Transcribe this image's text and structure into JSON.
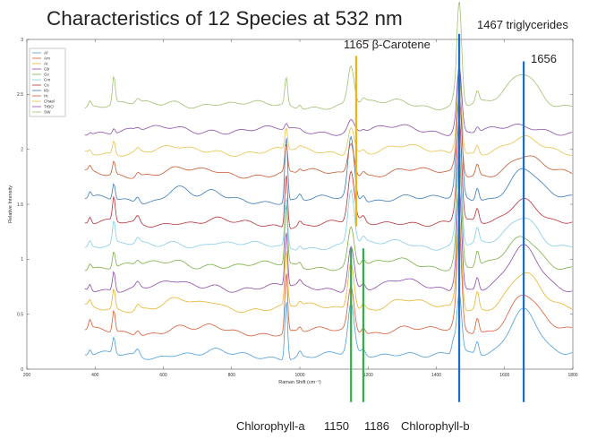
{
  "slide": {
    "title": "Characteristics of 12 Species at 532 nm",
    "annotations": {
      "carotene": "1165 β-Carotene",
      "triglycerides": "1467 triglycerides",
      "peak_1656": "1656",
      "chlorophyll_a_label": "Chlorophyll-a",
      "chlorophyll_a_value": "1150",
      "chlorophyll_b_value": "1186",
      "chlorophyll_b_label": "Chlorophyll-b"
    }
  },
  "chart_data": {
    "type": "line",
    "title": "",
    "xlabel": "Raman Shift (cm⁻¹)",
    "ylabel": "Relative Intensity",
    "xlim": [
      200,
      1800
    ],
    "ylim": [
      0,
      3
    ],
    "x_ticks": [
      200,
      400,
      600,
      800,
      1000,
      1200,
      1400,
      1600,
      1800
    ],
    "y_ticks": [
      0,
      0.5,
      1,
      1.5,
      2,
      2.5,
      3
    ],
    "grid": false,
    "legend_position": "top-left",
    "x_range": [
      370,
      1800
    ],
    "peaks_cm1": [
      385,
      455,
      525,
      640,
      745,
      960,
      1000,
      1150,
      1186,
      1300,
      1450,
      1467,
      1520,
      1656
    ],
    "series": [
      {
        "name": "Af",
        "color": "#4c9ed8",
        "offset": 0.0,
        "peak_heights": [
          0.05,
          0.15,
          0.06,
          0.04,
          0.03,
          0.55,
          0.05,
          0.45,
          0.05,
          0.05,
          0.12,
          0.55,
          0.12,
          0.45
        ]
      },
      {
        "name": "Am",
        "color": "#d95b34",
        "offset": 0.22,
        "peak_heights": [
          0.08,
          0.2,
          0.05,
          0.04,
          0.03,
          0.55,
          0.04,
          0.4,
          0.06,
          0.05,
          0.05,
          0.9,
          0.14,
          0.35
        ]
      },
      {
        "name": "At",
        "color": "#e8b430",
        "offset": 0.44,
        "peak_heights": [
          0.05,
          0.18,
          0.05,
          0.06,
          0.05,
          0.5,
          0.04,
          0.45,
          0.05,
          0.06,
          0.05,
          0.85,
          0.16,
          0.3
        ]
      },
      {
        "name": "Gb",
        "color": "#8c4ba8",
        "offset": 0.62,
        "peak_heights": [
          0.06,
          0.18,
          0.05,
          0.04,
          0.04,
          0.5,
          0.04,
          0.4,
          0.05,
          0.05,
          0.05,
          0.95,
          0.12,
          0.35
        ]
      },
      {
        "name": "Gc",
        "color": "#79b043",
        "offset": 0.82,
        "peak_heights": [
          0.05,
          0.15,
          0.04,
          0.04,
          0.03,
          0.55,
          0.04,
          0.35,
          0.06,
          0.04,
          0.05,
          1.0,
          0.14,
          0.25
        ]
      },
      {
        "name": "Cm",
        "color": "#84cde8",
        "offset": 1.0,
        "peak_heights": [
          0.05,
          0.2,
          0.05,
          0.05,
          0.04,
          0.45,
          0.04,
          0.5,
          0.05,
          0.05,
          0.05,
          0.95,
          0.13,
          0.28
        ]
      },
      {
        "name": "Cs",
        "color": "#b8323a",
        "offset": 1.2,
        "peak_heights": [
          0.06,
          0.22,
          0.06,
          0.04,
          0.03,
          0.5,
          0.04,
          0.45,
          0.05,
          0.04,
          0.05,
          0.95,
          0.12,
          0.25
        ]
      },
      {
        "name": "Kb",
        "color": "#3a7ab8",
        "offset": 1.42,
        "peak_heights": [
          0.05,
          0.15,
          0.06,
          0.12,
          0.05,
          0.6,
          0.05,
          0.55,
          0.06,
          0.05,
          0.05,
          1.2,
          0.12,
          0.3
        ]
      },
      {
        "name": "Ht",
        "color": "#c85a30",
        "offset": 1.66,
        "peak_heights": [
          0.04,
          0.12,
          0.04,
          0.03,
          0.02,
          0.25,
          0.03,
          0.3,
          0.04,
          0.03,
          0.04,
          0.7,
          0.1,
          0.15
        ]
      },
      {
        "name": "Chael",
        "color": "#e8c24a",
        "offset": 1.86,
        "peak_heights": [
          0.03,
          0.12,
          0.03,
          0.02,
          0.02,
          0.2,
          0.02,
          0.25,
          0.03,
          0.03,
          0.04,
          0.7,
          0.08,
          0.1
        ]
      },
      {
        "name": "TrBO",
        "color": "#8b4fa8",
        "offset": 2.05,
        "peak_heights": [
          0.02,
          0.05,
          0.02,
          0.02,
          0.02,
          0.05,
          0.01,
          0.1,
          0.02,
          0.02,
          0.03,
          0.6,
          0.05,
          0.02
        ]
      },
      {
        "name": "SW",
        "color": "#a0c070",
        "offset": 2.28,
        "peak_heights": [
          0.05,
          0.25,
          0.04,
          0.04,
          0.03,
          0.25,
          0.04,
          0.35,
          0.04,
          0.04,
          0.05,
          0.95,
          0.1,
          0.3
        ]
      }
    ],
    "markers": [
      {
        "x": 1165,
        "color": "#f0b020",
        "y_range": [
          1.3,
          2.85
        ]
      },
      {
        "x": 1150,
        "color": "#30b048",
        "y_range": [
          -0.3,
          1.1
        ]
      },
      {
        "x": 1186,
        "color": "#30b048",
        "y_range": [
          -0.3,
          1.1
        ]
      },
      {
        "x": 1467,
        "color": "#1c6cc8",
        "y_range": [
          -0.3,
          3.05
        ]
      },
      {
        "x": 1656,
        "color": "#1c6cc8",
        "y_range": [
          -0.3,
          2.8
        ]
      }
    ]
  }
}
